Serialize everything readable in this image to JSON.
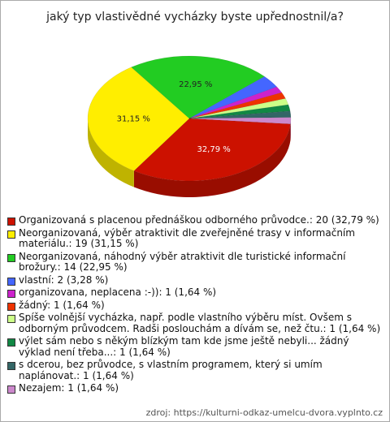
{
  "chart_data": {
    "type": "pie",
    "title": "jaký typ vlastivědné vycházky byste upřednostnil/a?",
    "categories": [
      "Organizovaná s placenou přednáškou odborného průvodce.: 20 (32,79 %)",
      "Neorganizovaná, výběr atraktivit dle zveřejněné trasy v informačním materiálu.: 19 (31,15 %)",
      "Neorganizovaná, náhodný výběr atraktivit dle turistické informační brožury.: 14 (22,95 %)",
      "vlastní: 2 (3,28 %)",
      "organizovana, neplacena :-)): 1 (1,64 %)",
      "žádný: 1 (1,64 %)",
      "Spíše volnější vycházka, např. podle vlastního výběru míst. Ovšem s odborným průvodcem. Radši poslouchám a dívám se, než čtu.: 1 (1,64 %)",
      "výlet sám nebo s někým blízkým tam kde jsme ještě nebyli... žádný výklad není třeba...: 1 (1,64 %)",
      "s dcerou, bez průvodce, s vlastním programem, který si umím naplánovat.: 1 (1,64 %)",
      "Nezajem: 1 (1,64 %)"
    ],
    "values": [
      32.79,
      31.15,
      22.95,
      3.28,
      1.64,
      1.64,
      1.64,
      1.64,
      1.64,
      1.64
    ],
    "value_labels": [
      "32,79 %",
      "31,15 %",
      "22,95 %",
      null,
      null,
      null,
      null,
      null,
      null,
      null
    ],
    "colors": [
      "#cc1100",
      "#ffee00",
      "#22cc22",
      "#4466ff",
      "#cc22cc",
      "#ee3300",
      "#ccff88",
      "#118844",
      "#336666",
      "#cc88cc"
    ],
    "source": "zdroj: https://kulturni-odkaz-umelcu-dvora.vyplnto.cz"
  }
}
